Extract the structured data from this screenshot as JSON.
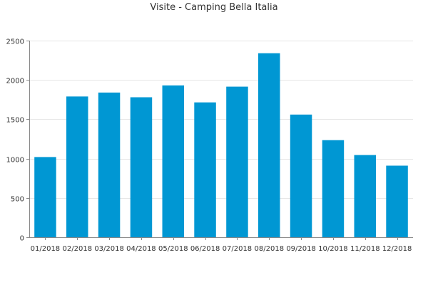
{
  "chart_data": {
    "type": "bar",
    "title": "Visite - Camping Bella Italia",
    "categories": [
      "01/2018",
      "02/2018",
      "03/2018",
      "04/2018",
      "05/2018",
      "06/2018",
      "07/2018",
      "08/2018",
      "09/2018",
      "10/2018",
      "11/2018",
      "12/2018"
    ],
    "values": [
      1020,
      1790,
      1840,
      1780,
      1930,
      1715,
      1915,
      2340,
      1560,
      1235,
      1045,
      910
    ],
    "xlabel": "",
    "ylabel": "",
    "ylim": [
      0,
      2500
    ],
    "yticks": [
      "0",
      "500",
      "1000",
      "1500",
      "2000",
      "2500"
    ],
    "grid": true,
    "legend": "none",
    "bar_color": "#0097d3",
    "grid_color": "#e6e6e6",
    "axis_color": "#888888"
  }
}
